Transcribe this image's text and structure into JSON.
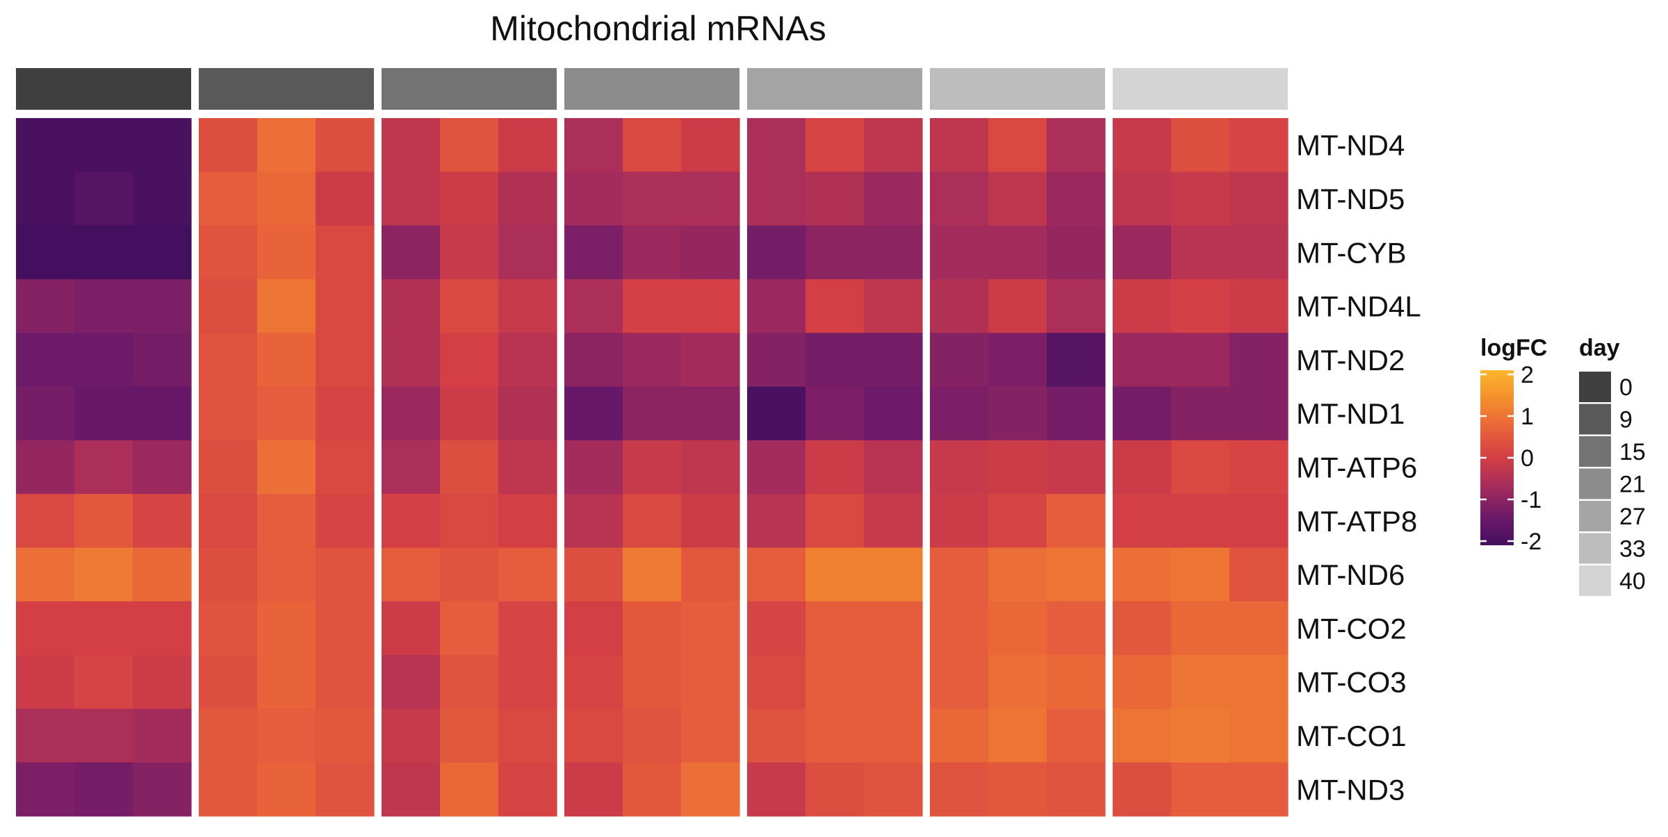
{
  "chart_data": {
    "type": "heatmap",
    "title": "Mitochondrial mRNAs",
    "rows": [
      "MT-ND4",
      "MT-ND5",
      "MT-CYB",
      "MT-ND4L",
      "MT-ND2",
      "MT-ND1",
      "MT-ATP6",
      "MT-ATP8",
      "MT-ND6",
      "MT-CO2",
      "MT-CO3",
      "MT-CO1",
      "MT-ND3"
    ],
    "groups": [
      {
        "day": "0",
        "color": "#3f3f3f"
      },
      {
        "day": "9",
        "color": "#595959"
      },
      {
        "day": "15",
        "color": "#737373"
      },
      {
        "day": "21",
        "color": "#8c8c8c"
      },
      {
        "day": "27",
        "color": "#a5a5a5"
      },
      {
        "day": "33",
        "color": "#bdbdbd"
      },
      {
        "day": "40",
        "color": "#d4d4d4"
      }
    ],
    "replicates_per_group": 3,
    "values": [
      [
        -2.0,
        -2.0,
        -2.0,
        0.3,
        0.9,
        0.3,
        -0.3,
        0.4,
        -0.1,
        -0.6,
        0.2,
        -0.1,
        -0.6,
        0.1,
        -0.3,
        -0.3,
        0.2,
        -0.6,
        -0.2,
        0.3,
        0.1
      ],
      [
        -2.0,
        -1.8,
        -2.0,
        0.6,
        0.8,
        -0.1,
        -0.3,
        -0.1,
        -0.5,
        -0.7,
        -0.6,
        -0.6,
        -0.6,
        -0.5,
        -0.8,
        -0.6,
        -0.3,
        -0.8,
        -0.3,
        -0.2,
        -0.3
      ],
      [
        -2.1,
        -2.1,
        -2.1,
        0.4,
        0.7,
        0.2,
        -1.0,
        -0.2,
        -0.6,
        -1.2,
        -0.8,
        -0.9,
        -1.3,
        -1.0,
        -1.0,
        -0.7,
        -0.7,
        -0.9,
        -0.8,
        -0.4,
        -0.4
      ],
      [
        -1.1,
        -1.2,
        -1.2,
        0.3,
        1.0,
        0.2,
        -0.5,
        0.2,
        -0.2,
        -0.6,
        0.0,
        0.0,
        -0.8,
        0.0,
        -0.3,
        -0.5,
        -0.1,
        -0.6,
        -0.1,
        0.0,
        -0.1
      ],
      [
        -1.4,
        -1.4,
        -1.3,
        0.4,
        0.7,
        0.2,
        -0.5,
        0.0,
        -0.4,
        -1.0,
        -0.8,
        -0.7,
        -1.1,
        -1.3,
        -1.3,
        -1.1,
        -1.2,
        -1.8,
        -0.8,
        -0.8,
        -1.1
      ],
      [
        -1.3,
        -1.5,
        -1.5,
        0.4,
        0.6,
        0.1,
        -0.8,
        -0.1,
        -0.5,
        -1.5,
        -1.0,
        -1.0,
        -2.0,
        -1.2,
        -1.4,
        -1.2,
        -1.1,
        -1.3,
        -1.3,
        -1.1,
        -1.1
      ],
      [
        -0.9,
        -0.6,
        -0.8,
        0.3,
        0.9,
        0.2,
        -0.6,
        0.3,
        -0.3,
        -0.7,
        -0.2,
        -0.3,
        -0.7,
        -0.1,
        -0.4,
        -0.2,
        -0.1,
        -0.2,
        -0.1,
        0.2,
        0.1
      ],
      [
        0.2,
        0.5,
        0.1,
        0.2,
        0.6,
        0.1,
        0.0,
        0.2,
        0.0,
        -0.4,
        0.2,
        -0.1,
        -0.4,
        0.2,
        -0.2,
        -0.1,
        0.1,
        0.6,
        0.0,
        0.0,
        0.0
      ],
      [
        0.9,
        1.1,
        0.8,
        0.3,
        0.6,
        0.4,
        0.6,
        0.4,
        0.6,
        0.3,
        1.1,
        0.5,
        0.6,
        1.2,
        1.2,
        0.6,
        0.9,
        1.0,
        0.9,
        1.0,
        0.4
      ],
      [
        0.0,
        0.0,
        0.0,
        0.4,
        0.7,
        0.4,
        -0.1,
        0.6,
        0.1,
        0.0,
        0.5,
        0.6,
        0.1,
        0.6,
        0.6,
        0.6,
        0.8,
        0.6,
        0.5,
        0.8,
        0.8
      ],
      [
        -0.1,
        0.1,
        -0.1,
        0.3,
        0.7,
        0.4,
        -0.4,
        0.4,
        0.1,
        0.1,
        0.5,
        0.6,
        0.2,
        0.6,
        0.6,
        0.6,
        0.9,
        0.8,
        0.8,
        1.0,
        1.0
      ],
      [
        -0.6,
        -0.6,
        -0.7,
        0.5,
        0.6,
        0.5,
        -0.2,
        0.5,
        0.2,
        0.2,
        0.4,
        0.6,
        0.4,
        0.6,
        0.6,
        0.8,
        1.0,
        0.6,
        1.0,
        1.1,
        1.0
      ],
      [
        -1.2,
        -1.3,
        -1.1,
        0.5,
        0.7,
        0.4,
        -0.3,
        0.8,
        0.1,
        -0.1,
        0.5,
        0.9,
        -0.2,
        0.3,
        0.4,
        0.4,
        0.5,
        0.4,
        0.3,
        0.6,
        0.6
      ]
    ],
    "colorbar": {
      "title": "logFC",
      "ticks": [
        "2",
        "1",
        "0",
        "-1",
        "-2"
      ],
      "tick_values": [
        2,
        1,
        0,
        -1,
        -2
      ],
      "range": [
        -2.1,
        2.1
      ],
      "stops": [
        "#440f5e",
        "#6e1a6a",
        "#a42c5c",
        "#d33f45",
        "#e8623a",
        "#f38e2d",
        "#fcb52c"
      ]
    },
    "legend": {
      "title": "day",
      "placement": "right"
    }
  }
}
